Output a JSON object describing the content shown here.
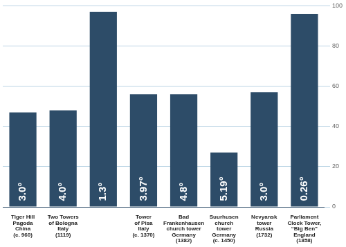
{
  "chart_data": {
    "type": "bar",
    "categories": [
      "Tiger Hill\nPagoda\nChina\n(c. 960)",
      "Two Towers\nof Bologna\nItaly\n(1119)",
      null,
      "Tower\nof Pisa\nItaly\n(c. 1370)",
      "Bad\nFrankenhausen\nchurch tower\nGermany\n(1382)",
      "Suurhusen\nchurch\ntower\nGermany\n(c. 1450)",
      "Nevyansk\ntower\nRussia\n(1732)",
      "Parliament\nClock Tower,\n“Big Ben”\nEngland\n(1858)"
    ],
    "values": [
      47,
      48,
      97,
      56,
      56,
      27,
      57,
      96
    ],
    "lean_labels": [
      "3.0°",
      "4.0°",
      "1.3°",
      "3.97°",
      "4.8°",
      "5.19°",
      "3.0°",
      "0.26°"
    ],
    "color": "#2d4c68",
    "ylim": [
      0,
      100
    ],
    "yticks": [
      0,
      20,
      40,
      60,
      80,
      100
    ],
    "grid": true
  }
}
